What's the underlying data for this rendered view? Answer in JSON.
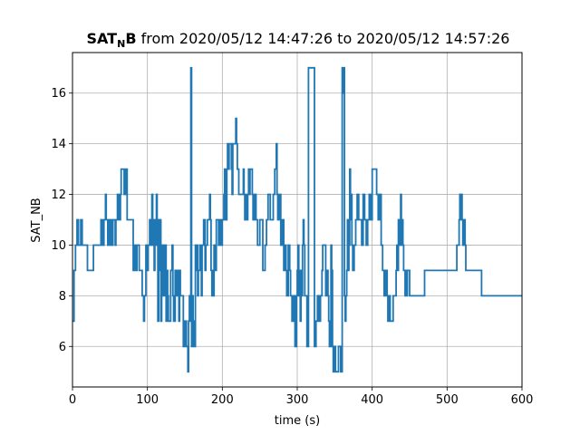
{
  "chart_data": {
    "type": "line",
    "title": {
      "bold_main": "SAT",
      "bold_subscript": "N",
      "bold_tail": "B",
      "rest": " from 2020/05/12 14:47:26 to 2020/05/12 14:57:26"
    },
    "xlabel": "time (s)",
    "ylabel": "SAT_NB",
    "xlim": [
      0,
      600
    ],
    "ylim": [
      4.4,
      17.6
    ],
    "x_ticks": [
      0,
      100,
      200,
      300,
      400,
      500,
      600
    ],
    "y_ticks": [
      6,
      8,
      10,
      12,
      14,
      16
    ],
    "grid": true,
    "line_color": "#1f77b4",
    "series": [
      {
        "step": true,
        "points": [
          [
            0,
            7
          ],
          [
            2,
            9
          ],
          [
            4,
            10
          ],
          [
            6,
            11
          ],
          [
            8,
            10
          ],
          [
            11,
            11
          ],
          [
            13,
            10
          ],
          [
            18,
            10
          ],
          [
            20,
            9
          ],
          [
            27,
            9
          ],
          [
            28,
            10
          ],
          [
            36,
            10
          ],
          [
            38,
            11
          ],
          [
            40,
            10
          ],
          [
            42,
            11
          ],
          [
            44,
            12
          ],
          [
            45,
            11
          ],
          [
            47,
            10
          ],
          [
            48,
            11
          ],
          [
            50,
            10
          ],
          [
            51,
            11
          ],
          [
            53,
            10
          ],
          [
            54,
            11
          ],
          [
            56,
            11
          ],
          [
            57,
            10
          ],
          [
            58,
            11
          ],
          [
            60,
            12
          ],
          [
            62,
            11
          ],
          [
            64,
            12
          ],
          [
            65,
            13
          ],
          [
            69,
            12
          ],
          [
            70,
            13
          ],
          [
            71,
            12
          ],
          [
            72,
            13
          ],
          [
            73,
            11
          ],
          [
            80,
            11
          ],
          [
            81,
            9
          ],
          [
            83,
            10
          ],
          [
            84,
            9
          ],
          [
            86,
            10
          ],
          [
            89,
            9
          ],
          [
            93,
            8
          ],
          [
            95,
            7
          ],
          [
            96,
            8
          ],
          [
            98,
            10
          ],
          [
            99,
            9
          ],
          [
            101,
            10
          ],
          [
            103,
            11
          ],
          [
            104,
            10
          ],
          [
            106,
            12
          ],
          [
            107,
            10
          ],
          [
            108,
            11
          ],
          [
            109,
            9
          ],
          [
            110,
            11
          ],
          [
            111,
            10
          ],
          [
            112,
            12
          ],
          [
            113,
            11
          ],
          [
            114,
            7
          ],
          [
            115,
            11
          ],
          [
            116,
            9
          ],
          [
            117,
            11
          ],
          [
            118,
            7
          ],
          [
            119,
            10
          ],
          [
            120,
            8
          ],
          [
            121,
            10
          ],
          [
            122,
            9
          ],
          [
            123,
            8
          ],
          [
            124,
            10
          ],
          [
            125,
            7
          ],
          [
            126,
            9
          ],
          [
            127,
            8
          ],
          [
            128,
            7
          ],
          [
            131,
            9
          ],
          [
            133,
            10
          ],
          [
            134,
            8
          ],
          [
            135,
            7
          ],
          [
            137,
            9
          ],
          [
            139,
            8
          ],
          [
            141,
            9
          ],
          [
            142,
            7
          ],
          [
            143,
            9
          ],
          [
            144,
            8
          ],
          [
            146,
            8
          ],
          [
            148,
            6
          ],
          [
            150,
            7
          ],
          [
            152,
            6
          ],
          [
            154,
            5
          ],
          [
            155,
            7
          ],
          [
            156,
            8
          ],
          [
            157,
            7
          ],
          [
            158,
            17
          ],
          [
            159,
            6
          ],
          [
            160,
            8
          ],
          [
            161,
            6
          ],
          [
            162,
            7
          ],
          [
            163,
            6
          ],
          [
            164,
            10
          ],
          [
            165,
            9
          ],
          [
            166,
            10
          ],
          [
            167,
            8
          ],
          [
            168,
            9
          ],
          [
            170,
            10
          ],
          [
            172,
            8
          ],
          [
            173,
            10
          ],
          [
            175,
            11
          ],
          [
            177,
            9
          ],
          [
            178,
            10
          ],
          [
            180,
            11
          ],
          [
            183,
            12
          ],
          [
            184,
            11
          ],
          [
            185,
            9
          ],
          [
            186,
            8
          ],
          [
            187,
            9
          ],
          [
            188,
            8
          ],
          [
            189,
            10
          ],
          [
            190,
            9
          ],
          [
            192,
            11
          ],
          [
            195,
            10
          ],
          [
            196,
            11
          ],
          [
            198,
            10
          ],
          [
            200,
            11
          ],
          [
            202,
            12
          ],
          [
            203,
            13
          ],
          [
            204,
            11
          ],
          [
            206,
            13
          ],
          [
            207,
            14
          ],
          [
            208,
            13
          ],
          [
            209,
            14
          ],
          [
            212,
            13
          ],
          [
            213,
            12
          ],
          [
            214,
            14
          ],
          [
            218,
            15
          ],
          [
            219,
            14
          ],
          [
            220,
            13
          ],
          [
            222,
            12
          ],
          [
            228,
            13
          ],
          [
            229,
            12
          ],
          [
            230,
            11
          ],
          [
            232,
            12
          ],
          [
            233,
            11
          ],
          [
            234,
            12
          ],
          [
            235,
            13
          ],
          [
            236,
            12
          ],
          [
            237,
            13
          ],
          [
            239,
            13
          ],
          [
            240,
            12
          ],
          [
            241,
            11
          ],
          [
            243,
            12
          ],
          [
            245,
            11
          ],
          [
            247,
            10
          ],
          [
            250,
            11
          ],
          [
            252,
            11
          ],
          [
            254,
            9
          ],
          [
            257,
            10
          ],
          [
            259,
            11
          ],
          [
            261,
            12
          ],
          [
            262,
            12
          ],
          [
            264,
            11
          ],
          [
            268,
            12
          ],
          [
            270,
            13
          ],
          [
            272,
            14
          ],
          [
            273,
            12
          ],
          [
            274,
            11
          ],
          [
            276,
            12
          ],
          [
            278,
            10
          ],
          [
            280,
            11
          ],
          [
            282,
            9
          ],
          [
            283,
            10
          ],
          [
            285,
            9
          ],
          [
            286,
            8
          ],
          [
            288,
            10
          ],
          [
            290,
            9
          ],
          [
            291,
            8
          ],
          [
            293,
            7
          ],
          [
            295,
            8
          ],
          [
            297,
            6
          ],
          [
            299,
            8
          ],
          [
            300,
            9
          ],
          [
            301,
            10
          ],
          [
            302,
            8
          ],
          [
            303,
            9
          ],
          [
            304,
            7
          ],
          [
            305,
            9
          ],
          [
            306,
            8
          ],
          [
            307,
            10
          ],
          [
            308,
            11
          ],
          [
            309,
            10
          ],
          [
            310,
            8
          ],
          [
            313,
            6
          ],
          [
            315,
            17
          ],
          [
            322,
            17
          ],
          [
            323,
            6
          ],
          [
            325,
            7
          ],
          [
            327,
            8
          ],
          [
            329,
            7
          ],
          [
            331,
            8
          ],
          [
            333,
            9
          ],
          [
            334,
            10
          ],
          [
            336,
            10
          ],
          [
            338,
            8
          ],
          [
            340,
            9
          ],
          [
            341,
            8
          ],
          [
            342,
            7
          ],
          [
            343,
            6
          ],
          [
            345,
            10
          ],
          [
            346,
            9
          ],
          [
            347,
            6
          ],
          [
            348,
            5
          ],
          [
            350,
            6
          ],
          [
            351,
            5
          ],
          [
            354,
            5
          ],
          [
            355,
            6
          ],
          [
            358,
            5
          ],
          [
            360,
            17
          ],
          [
            361,
            16
          ],
          [
            362,
            17
          ],
          [
            363,
            8
          ],
          [
            364,
            7
          ],
          [
            365,
            8
          ],
          [
            366,
            9
          ],
          [
            367,
            11
          ],
          [
            368,
            9
          ],
          [
            369,
            10
          ],
          [
            370,
            13
          ],
          [
            371,
            11
          ],
          [
            372,
            12
          ],
          [
            373,
            10
          ],
          [
            374,
            9
          ],
          [
            376,
            10
          ],
          [
            378,
            11
          ],
          [
            380,
            12
          ],
          [
            382,
            11
          ],
          [
            384,
            11
          ],
          [
            386,
            10
          ],
          [
            388,
            12
          ],
          [
            390,
            11
          ],
          [
            392,
            10
          ],
          [
            394,
            11
          ],
          [
            396,
            12
          ],
          [
            398,
            11
          ],
          [
            400,
            13
          ],
          [
            404,
            13
          ],
          [
            406,
            12
          ],
          [
            408,
            11
          ],
          [
            410,
            12
          ],
          [
            412,
            10
          ],
          [
            414,
            9
          ],
          [
            416,
            8
          ],
          [
            418,
            9
          ],
          [
            420,
            8
          ],
          [
            421,
            7
          ],
          [
            422,
            8
          ],
          [
            424,
            7
          ],
          [
            428,
            8
          ],
          [
            431,
            8
          ],
          [
            432,
            9
          ],
          [
            433,
            10
          ],
          [
            434,
            9
          ],
          [
            435,
            11
          ],
          [
            436,
            10
          ],
          [
            437,
            11
          ],
          [
            438,
            12
          ],
          [
            439,
            10
          ],
          [
            440,
            11
          ],
          [
            441,
            10
          ],
          [
            442,
            9
          ],
          [
            444,
            8
          ],
          [
            445,
            9
          ],
          [
            446,
            8
          ],
          [
            447,
            9
          ],
          [
            448,
            9
          ],
          [
            450,
            8
          ],
          [
            469,
            8
          ],
          [
            470,
            9
          ],
          [
            499,
            9
          ],
          [
            503,
            9
          ],
          [
            512,
            9
          ],
          [
            513,
            10
          ],
          [
            516,
            11
          ],
          [
            517,
            12
          ],
          [
            518,
            11
          ],
          [
            519,
            12
          ],
          [
            520,
            11
          ],
          [
            521,
            10
          ],
          [
            523,
            11
          ],
          [
            524,
            10
          ],
          [
            525,
            9
          ],
          [
            530,
            9
          ],
          [
            545,
            9
          ],
          [
            546,
            8
          ],
          [
            580,
            8
          ]
        ]
      }
    ]
  }
}
